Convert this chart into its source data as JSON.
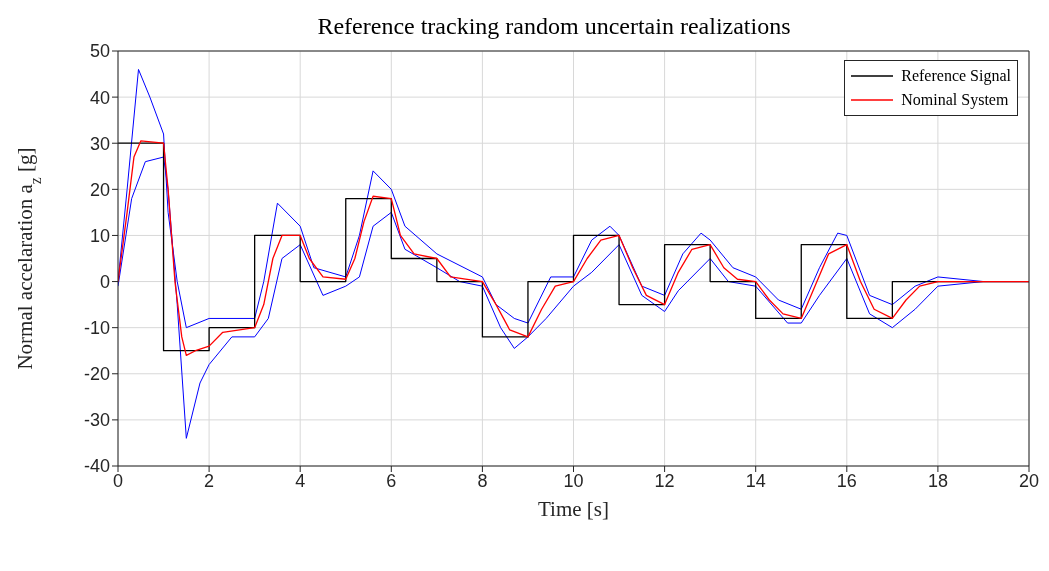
{
  "chart_data": {
    "type": "line",
    "title": "Reference tracking random uncertain realizations",
    "xlabel": "Time [s]",
    "ylabel": "Normal accelaration a$_{z}$ [g]",
    "xlim": [
      0,
      20
    ],
    "xticks": [
      0,
      2,
      4,
      6,
      8,
      10,
      12,
      14,
      16,
      18,
      20
    ],
    "ylim": [
      -40,
      50
    ],
    "yticks": [
      -40,
      -30,
      -20,
      -10,
      0,
      10,
      20,
      30,
      40,
      50
    ],
    "grid": true,
    "legend": "top right",
    "marker": "none",
    "line_style": "solid",
    "series": [
      {
        "color": "#0000ff",
        "x": [
          0,
          0.2,
          0.45,
          0.7,
          1.0,
          1.1,
          1.3,
          1.5,
          2.0,
          3.0,
          3.2,
          3.5,
          4.0,
          4.3,
          5.0,
          5.3,
          5.6,
          6.0,
          6.3,
          7.0,
          8.0,
          8.3,
          8.7,
          9.0,
          9.5,
          10.0,
          10.4,
          10.8,
          11.0,
          11.5,
          12.0,
          12.4,
          12.8,
          13.0,
          13.5,
          14.0,
          14.5,
          15.0,
          15.4,
          15.8,
          16.0,
          16.5,
          17.0,
          17.5,
          18.0,
          19.0,
          20
        ],
        "values": [
          0,
          20,
          46,
          40,
          32,
          15,
          0,
          -10,
          -8,
          -8,
          0,
          17,
          12,
          3,
          1,
          10,
          24,
          20,
          12,
          6,
          1,
          -5,
          -8,
          -9,
          1,
          1,
          9,
          12,
          10,
          -1,
          -3,
          6,
          10.5,
          9,
          3,
          1,
          -4,
          -6,
          3,
          10.5,
          10,
          -3,
          -5,
          -1,
          1,
          0,
          0
        ]
      },
      {
        "color": "#0000ff",
        "x": [
          0,
          0.3,
          0.6,
          1.0,
          1.1,
          1.3,
          1.5,
          1.8,
          2.0,
          2.5,
          3.0,
          3.3,
          3.6,
          4.0,
          4.5,
          5.0,
          5.3,
          5.6,
          6.0,
          6.3,
          7.0,
          7.5,
          8.0,
          8.4,
          8.7,
          9.0,
          9.4,
          10.0,
          10.4,
          11.0,
          11.5,
          12.0,
          12.3,
          13.0,
          13.4,
          14.0,
          14.7,
          15.0,
          15.4,
          16.0,
          16.5,
          17.0,
          17.5,
          18.0,
          19,
          20
        ],
        "values": [
          -1,
          18,
          26,
          27,
          20,
          -5,
          -34,
          -22,
          -18,
          -12,
          -12,
          -8,
          5,
          8,
          -3,
          -1,
          1,
          12,
          15,
          7,
          3,
          0,
          -1,
          -10,
          -14.5,
          -12,
          -8,
          -1,
          2,
          8,
          -3,
          -6.5,
          -2,
          5,
          0,
          -1,
          -9,
          -9,
          -3,
          5,
          -7,
          -10,
          -6,
          -1,
          0,
          0
        ]
      },
      {
        "name": "Reference Signal",
        "type": "step",
        "color": "#000000",
        "x": [
          0,
          1,
          2,
          3,
          4,
          5,
          6,
          7,
          8,
          9,
          10,
          11,
          12,
          13,
          14,
          15,
          16,
          17,
          20
        ],
        "values": [
          30,
          -15,
          -10,
          10,
          0,
          18,
          5,
          0,
          -12,
          0,
          10,
          -5,
          8,
          0,
          -8,
          8,
          -8,
          0,
          0
        ]
      },
      {
        "name": "Nominal System",
        "color": "#ff0000",
        "x": [
          0,
          0.2,
          0.35,
          0.5,
          1.0,
          1.1,
          1.25,
          1.4,
          1.5,
          1.7,
          2.0,
          2.3,
          3.0,
          3.2,
          3.4,
          3.6,
          4.0,
          4.2,
          4.5,
          5.0,
          5.2,
          5.4,
          5.6,
          6.0,
          6.2,
          6.5,
          7.0,
          7.3,
          8.0,
          8.3,
          8.6,
          9.0,
          9.3,
          9.6,
          10.0,
          10.3,
          10.6,
          11.0,
          11.3,
          11.6,
          12.0,
          12.3,
          12.6,
          13.0,
          13.3,
          13.6,
          14.0,
          14.3,
          14.6,
          15.0,
          15.3,
          15.6,
          16.0,
          16.3,
          16.6,
          17.0,
          17.3,
          17.6,
          18,
          20
        ],
        "values": [
          0,
          15,
          27,
          30.5,
          30,
          20,
          0,
          -12,
          -16,
          -15,
          -14,
          -11,
          -10,
          -5,
          5,
          10,
          10,
          5,
          1,
          0.5,
          5,
          13,
          18.5,
          18,
          10,
          6,
          5,
          1,
          0,
          -5,
          -10.5,
          -12,
          -6,
          -1,
          0,
          5,
          9,
          10,
          3,
          -3,
          -5,
          2,
          7,
          8,
          3,
          0.5,
          0,
          -4,
          -7,
          -8,
          -1,
          6,
          8,
          0,
          -6,
          -8,
          -4,
          -1,
          0,
          0
        ]
      }
    ]
  }
}
